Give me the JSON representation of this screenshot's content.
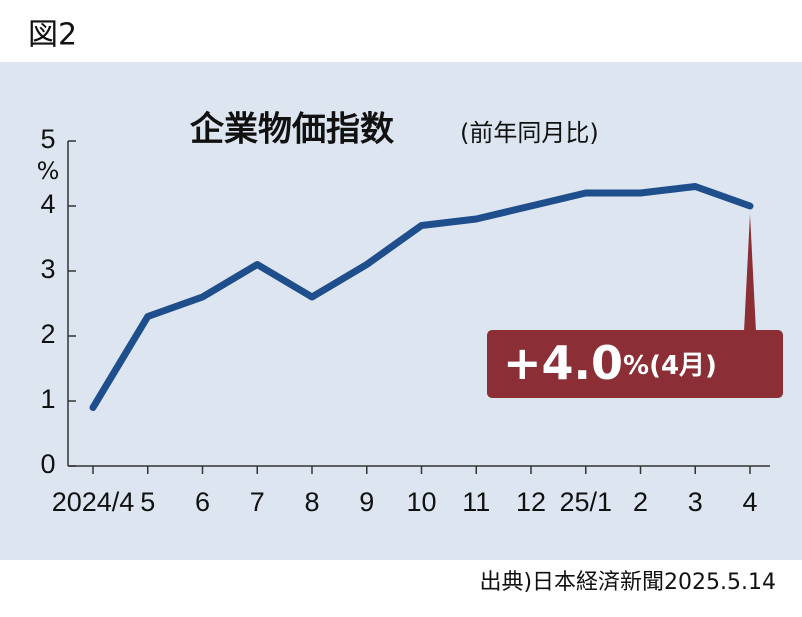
{
  "figure_label": "図2",
  "chart_data": {
    "type": "line",
    "title": "企業物価指数",
    "subtitle": "(前年同月比)",
    "y_unit": "%",
    "categories": [
      "2024/4",
      "5",
      "6",
      "7",
      "8",
      "9",
      "10",
      "11",
      "12",
      "25/1",
      "2",
      "3",
      "4"
    ],
    "series": [
      {
        "name": "企業物価指数",
        "color": "#1f4e8c",
        "values": [
          0.9,
          2.3,
          2.6,
          3.1,
          2.6,
          3.1,
          3.7,
          3.8,
          4.0,
          4.2,
          4.2,
          4.3,
          4.0
        ]
      }
    ],
    "ylim": [
      0,
      5
    ],
    "yticks": [
      0,
      1,
      2,
      3,
      4,
      5
    ],
    "annotation": {
      "value": "+4.0",
      "suffix": "%(4月)",
      "color": "#8b2e35"
    }
  },
  "source": "出典)日本経済新聞2025.5.14"
}
